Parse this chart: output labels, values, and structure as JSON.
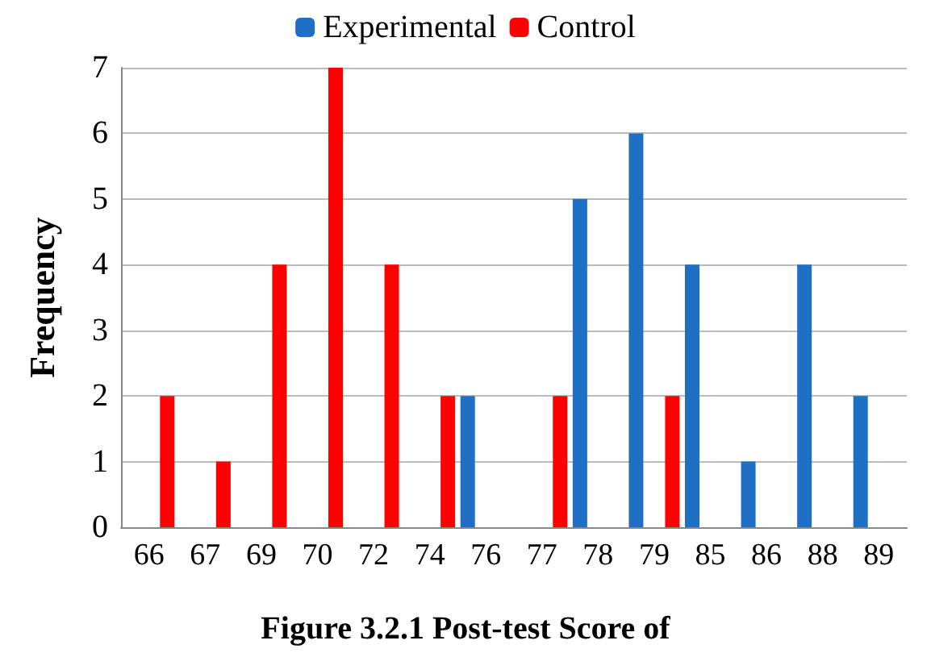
{
  "chart_data": {
    "type": "bar",
    "title": "Figure 3.2.1 Post-test Score of",
    "ylabel": "Frequency",
    "categories": [
      "66",
      "67",
      "69",
      "70",
      "72",
      "74",
      "76",
      "77",
      "78",
      "79",
      "85",
      "86",
      "88",
      "89"
    ],
    "series": [
      {
        "name": "Experimental",
        "color": "#1f6fc5",
        "values": [
          null,
          null,
          null,
          null,
          null,
          null,
          2,
          null,
          5,
          6,
          4,
          1,
          4,
          2
        ]
      },
      {
        "name": "Control",
        "color": "#ff0000",
        "values": [
          2,
          1,
          4,
          7,
          4,
          2,
          null,
          2,
          null,
          2,
          null,
          null,
          null,
          null
        ]
      }
    ],
    "ylim": [
      0,
      7
    ],
    "yticks": [
      0,
      1,
      2,
      3,
      4,
      5,
      6,
      7
    ],
    "grid": "y",
    "legend": "top"
  }
}
